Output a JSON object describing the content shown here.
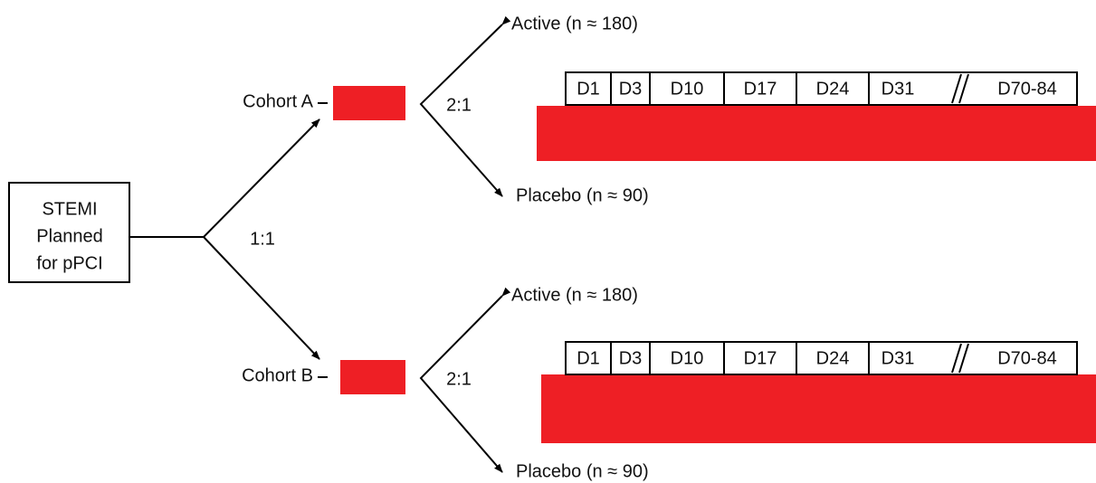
{
  "start_box": {
    "lines": [
      "STEMI",
      "Planned",
      "for pPCI"
    ]
  },
  "randomization_ratio": "1:1",
  "cohorts": [
    {
      "label": "Cohort A",
      "allocation_ratio": "2:1",
      "arms": [
        "Active (n ≈ 180)",
        "Placebo (n ≈ 90)"
      ],
      "timepoints": [
        "D1",
        "D3",
        "D10",
        "D17",
        "D24",
        "D31",
        "D70-84"
      ]
    },
    {
      "label": "Cohort B",
      "allocation_ratio": "2:1",
      "arms": [
        "Active (n ≈ 180)",
        "Placebo (n ≈ 90)"
      ],
      "timepoints": [
        "D1",
        "D3",
        "D10",
        "D17",
        "D24",
        "D31",
        "D70-84"
      ]
    }
  ]
}
